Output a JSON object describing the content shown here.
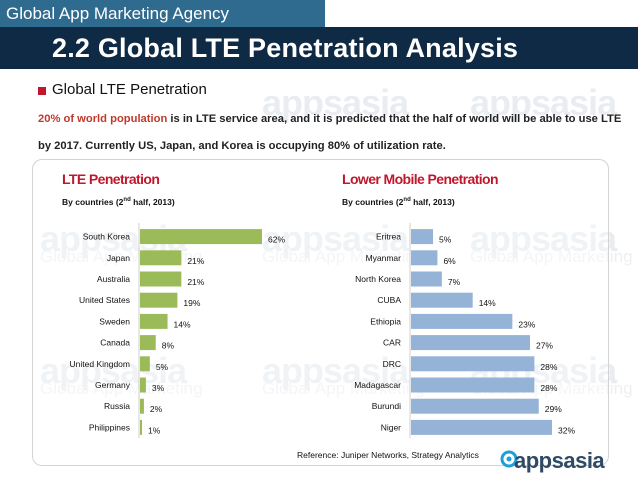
{
  "header": {
    "agency": "Global App Marketing Agency",
    "title": "2.2 Global LTE Penetration Analysis"
  },
  "intro": {
    "bullet": "Global LTE Penetration",
    "highlight": "20% of world population",
    "rest": " is in LTE service area, and it is predicted that the half of world will be able to use LTE by 2017. Currently US, Japan, and Korea is occupying 80% of utilization rate."
  },
  "watermark": {
    "brand": "appsasia",
    "tagline": "Global App Marketing"
  },
  "colors": {
    "green_bar": "#9bbb59",
    "blue_bar": "#95b3d7",
    "accent_red": "#c0172d",
    "title_bar": "#0f2a44",
    "agency_tag": "#2f6b8f"
  },
  "chart_data": [
    {
      "type": "bar",
      "orientation": "horizontal",
      "title": "LTE Penetration",
      "subtitle_main": "By countries (2",
      "subtitle_sup": "nd",
      "subtitle_end": " half, 2013)",
      "categories": [
        "South Korea",
        "Japan",
        "Australia",
        "United States",
        "Sweden",
        "Canada",
        "United Kingdom",
        "Germany",
        "Russia",
        "Philippines"
      ],
      "values": [
        62,
        21,
        21,
        19,
        14,
        8,
        5,
        3,
        2,
        1
      ],
      "value_suffix": "%",
      "xlim": [
        0,
        62
      ],
      "grid": false
    },
    {
      "type": "bar",
      "orientation": "horizontal",
      "title": "Lower Mobile Penetration",
      "subtitle_main": "By countries (2",
      "subtitle_sup": "nd",
      "subtitle_end": " half, 2013)",
      "categories": [
        "Eritrea",
        "Myanmar",
        "North Korea",
        "CUBA",
        "Ethiopia",
        "CAR",
        "DRC",
        "Madagascar",
        "Burundi",
        "Niger"
      ],
      "values": [
        5,
        6,
        7,
        14,
        23,
        27,
        28,
        28,
        29,
        32
      ],
      "value_suffix": "%",
      "xlim": [
        0,
        32
      ],
      "grid": false
    }
  ],
  "footer": {
    "reference": "Reference: Juniper Networks, Strategy Analytics",
    "logo_text": "appsasia"
  }
}
